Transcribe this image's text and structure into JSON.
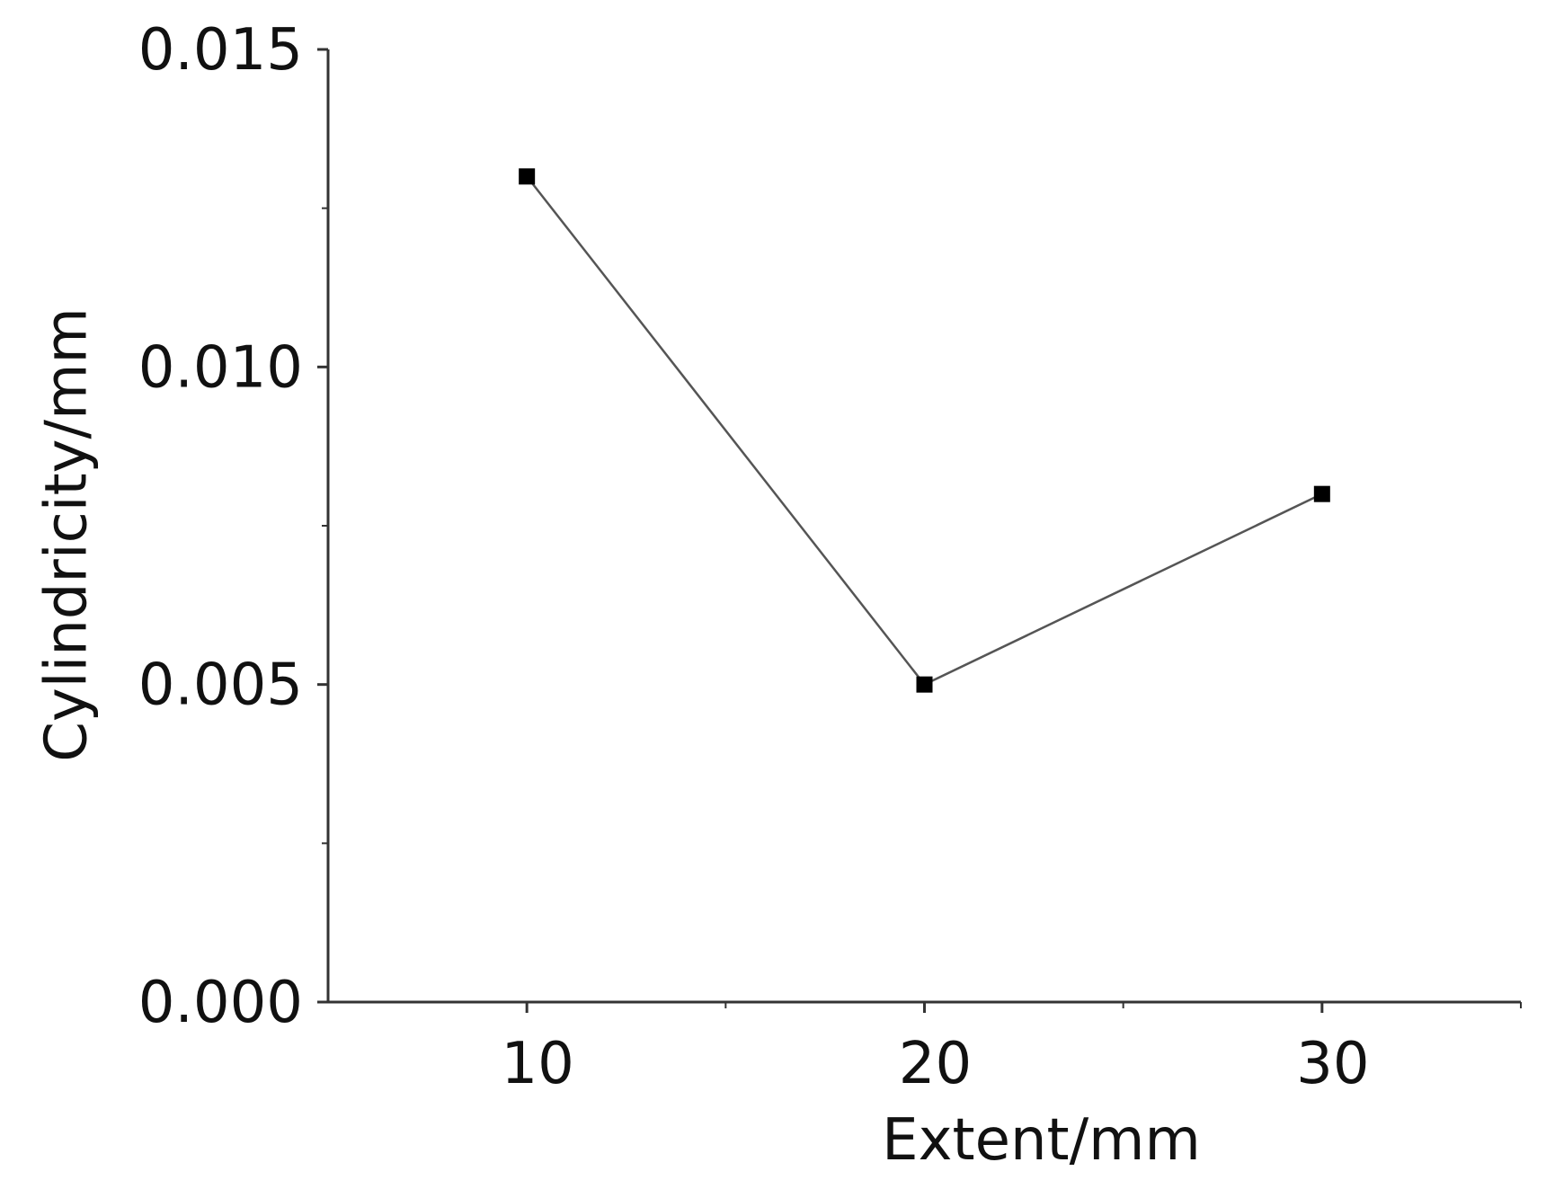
{
  "chart_data": {
    "type": "line",
    "xlabel": "Extent/mm",
    "ylabel": "Cylindricity/mm",
    "xlim": [
      5,
      35
    ],
    "ylim": [
      0,
      0.015
    ],
    "x_ticks": [
      10,
      20,
      30
    ],
    "x_tick_labels": [
      "10",
      "20",
      "30"
    ],
    "y_ticks": [
      0,
      0.005,
      0.01,
      0.015
    ],
    "y_tick_labels": [
      "0.000",
      "0.005",
      "0.010",
      "0.015"
    ],
    "x_minor_ticks": [
      15,
      25,
      35
    ],
    "y_minor_ticks": [
      0.0025,
      0.0075,
      0.0125
    ],
    "grid": false,
    "series": [
      {
        "x": [
          10,
          20,
          30
        ],
        "values": [
          0.013,
          0.005,
          0.008
        ],
        "marker": "square",
        "line_color": "#555555",
        "marker_color": "#000000"
      }
    ]
  }
}
